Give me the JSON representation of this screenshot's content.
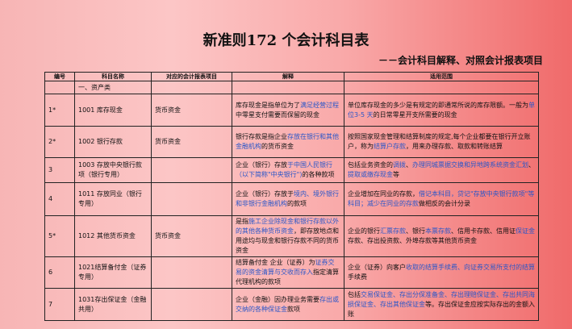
{
  "title": "新准则172 个会计科目表",
  "subtitle": "－－会计科目解释、对照会计报表项目",
  "table": {
    "headers": [
      "编号",
      "科目名称",
      "对应的会计报表项目",
      "解释",
      "适用范围"
    ],
    "category": "一、资产类",
    "rows": [
      {
        "no": "1*",
        "name": "1001 库存现金",
        "report": "货币资金",
        "explain": [
          {
            "t": "库存现金是指单位为了"
          },
          {
            "t": "满足经营过程",
            "link": true
          },
          {
            "t": "中零星支付需要而保留的现金"
          }
        ],
        "scope": [
          {
            "t": "单位库存现金的多少是有规定的即通常所说的库存限额。一般为"
          },
          {
            "t": "单位3-5 天",
            "link": true
          },
          {
            "t": "的日常零星开支所需要的现金"
          }
        ]
      },
      {
        "no": "2*",
        "name": "1002 银行存款",
        "report": "货币资金",
        "explain": [
          {
            "t": "银行存款是指企业"
          },
          {
            "t": "存放在银行和其他金融机构",
            "link": true
          },
          {
            "t": "的货币资金"
          }
        ],
        "scope": [
          {
            "t": "按照国家现金管理和结算制度的规定,每个企业都要在银行开立账户，称为"
          },
          {
            "t": "结算户存款",
            "link": true
          },
          {
            "t": "，用来办理存款、取款和转账结算"
          }
        ]
      },
      {
        "no": "3",
        "name": "1003 存放中央银行款项（银行专用）",
        "report": "",
        "explain": [
          {
            "t": "企业（银行）存放"
          },
          {
            "t": "于中国人民银行（以下简称\"中央银行\")",
            "link": true
          },
          {
            "t": "的各种款项"
          }
        ],
        "scope": [
          {
            "t": "包括业务资金的"
          },
          {
            "t": "调拨",
            "link": true
          },
          {
            "t": "、"
          },
          {
            "t": "办理同城票据交换和异地跨系统资金汇划",
            "link": true
          },
          {
            "t": "、"
          },
          {
            "t": "提取或缴存现金",
            "link": true
          },
          {
            "t": "等"
          }
        ]
      },
      {
        "no": "4",
        "name": "1011 存放同业（银行专用）",
        "report": "",
        "explain": [
          {
            "t": "企业（银行）存放于"
          },
          {
            "t": "境内、境外银行和非银行金融机构",
            "link": true
          },
          {
            "t": "的款项"
          }
        ],
        "scope": [
          {
            "t": "企业增加在同业的存款，"
          },
          {
            "t": "借记本科目，贷记\"存放中央银行款项\"等科目；减少在同业的存款",
            "link": true
          },
          {
            "t": "做相反的会计分录"
          }
        ]
      },
      {
        "no": "5*",
        "name": "1012 其他货币资金",
        "report": "货币资金",
        "explain": [
          {
            "t": "是指"
          },
          {
            "t": "施工企业除现金和银行存款以外的其他各种货币资金",
            "link": true
          },
          {
            "t": "，即存放地点和用途均与现金和银行存款不同的货币资金"
          }
        ],
        "scope": [
          {
            "t": "企业的银行"
          },
          {
            "t": "汇票存款",
            "link": true
          },
          {
            "t": "、银行"
          },
          {
            "t": "本票存款",
            "link": true
          },
          {
            "t": "、信用卡存款、信用证"
          },
          {
            "t": "保证金",
            "link": true
          },
          {
            "t": "存款、存出投资款、外埠存款等其他货币资金"
          }
        ]
      },
      {
        "no": "6",
        "name": "1021结算备付金（证券专用）",
        "report": "",
        "explain": [
          {
            "t": "结算备付金 企业（证券）为"
          },
          {
            "t": "证券交易的资金清算与交收而存入",
            "link": true
          },
          {
            "t": "指定清算代理机构的款项"
          }
        ],
        "scope": [
          {
            "t": "企业（证券）向客户"
          },
          {
            "t": "收取的结算手续费、向证券交易所支付的结算",
            "link": true
          },
          {
            "t": "手续费"
          }
        ]
      },
      {
        "no": "7",
        "name": "1031存出保证金（金融共用）",
        "report": "",
        "explain": [
          {
            "t": "企业（金融）因办理业务需要"
          },
          {
            "t": "存出或交纳的各种保证金",
            "link": true
          },
          {
            "t": "款项"
          }
        ],
        "scope": [
          {
            "t": "包括"
          },
          {
            "t": "交易保证金、存出分保准备金、存出理赔保证金、存出共同海损保证金、存出其他保证金",
            "link": true
          },
          {
            "t": "等。存出保证金应按实际存出的金额入账"
          }
        ]
      }
    ]
  },
  "colors": {
    "link": "#2a56c8",
    "border": "#222222"
  }
}
